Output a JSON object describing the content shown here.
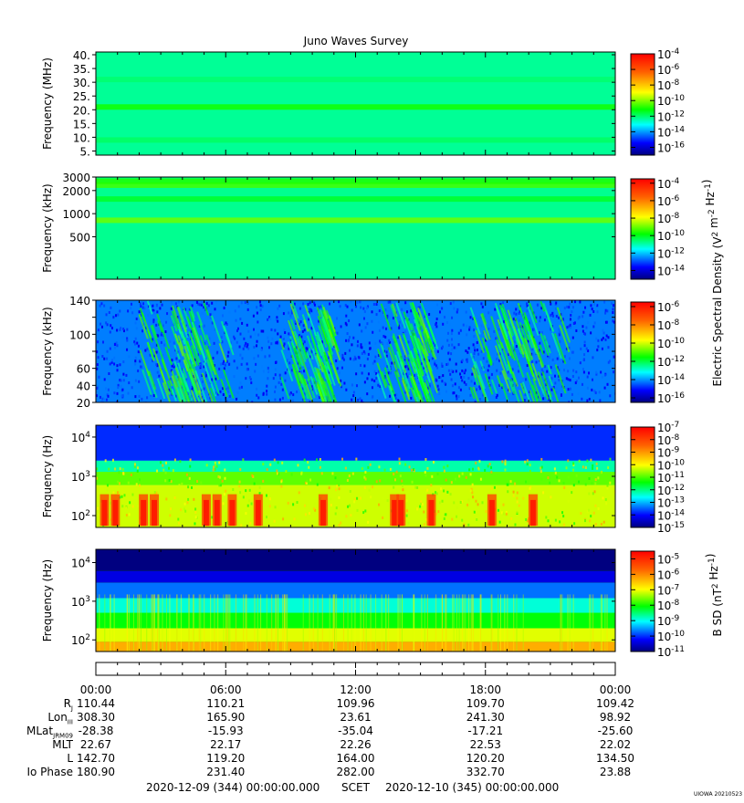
{
  "chart_data": {
    "type": "heatmap",
    "title": "Juno Waves Survey",
    "panels": [
      {
        "name": "hfr-high",
        "ylabel": "Frequency (MHz)",
        "yscale": "linear",
        "ylim": [
          3.5,
          41
        ],
        "yticks": [
          5,
          10,
          15,
          20,
          25,
          30,
          35,
          40
        ],
        "ytick_labels": [
          "5.",
          "10.",
          "15.",
          "20.",
          "25.",
          "30.",
          "35.",
          "40."
        ],
        "colorbar": {
          "log_min": -17,
          "log_max": -4,
          "tick_exps": [
            "-16",
            "-14",
            "-12",
            "-10",
            "-8",
            "-6",
            "-4"
          ]
        },
        "base_log": -12.3,
        "bands": [
          {
            "y": 21,
            "log": -11.0
          },
          {
            "y": 9,
            "log": -11.9
          },
          {
            "y": 31,
            "log": -12.0
          }
        ]
      },
      {
        "name": "hfr-low",
        "ylabel": "Frequency (kHz)",
        "yscale": "log",
        "ylim": [
          140,
          3000
        ],
        "yticks": [
          500,
          1000,
          2000,
          3000
        ],
        "ytick_labels": [
          "500",
          "1000",
          "2000",
          "3000"
        ],
        "colorbar": {
          "log_min": -15,
          "log_max": -3.5,
          "tick_exps": [
            "-14",
            "-12",
            "-10",
            "-8",
            "-6",
            "-4"
          ]
        },
        "base_log": -10.8,
        "bands": [
          {
            "y": 820,
            "log": -9.0
          },
          {
            "y": 2350,
            "log": -9.3
          },
          {
            "y": 1550,
            "log": -10.1
          },
          {
            "y": 2650,
            "log": -9.6
          }
        ]
      },
      {
        "name": "lfr-high",
        "ylabel": "Frequency (kHz)",
        "yscale": "linear",
        "ylim": [
          20,
          140
        ],
        "yticks": [
          20,
          40,
          60,
          80,
          100,
          120,
          140
        ],
        "ytick_labels": [
          "20",
          "40",
          "60",
          "",
          "100",
          "",
          "140"
        ],
        "colorbar": {
          "log_min": -16.5,
          "log_max": -5.5,
          "tick_exps": [
            "-16",
            "-14",
            "-12",
            "-10",
            "-8",
            "-6"
          ]
        },
        "base_log": -14.2,
        "bursts": [
          [
            2,
            6
          ],
          [
            3.5,
            4.5
          ],
          [
            8.5,
            10.5
          ],
          [
            10.2,
            10.8
          ],
          [
            13,
            15
          ],
          [
            14.5,
            15.3
          ],
          [
            17.3,
            20
          ],
          [
            18.5,
            21.5
          ]
        ]
      },
      {
        "name": "lfr-low",
        "ylabel": "Frequency (Hz)",
        "yscale": "log",
        "ylim": [
          50,
          20000
        ],
        "yticks": [
          100,
          1000,
          10000
        ],
        "ytick_labels": [
          "10^2",
          "10^3",
          "10^4"
        ],
        "colorbar": {
          "log_min": -15,
          "log_max": -7,
          "tick_exps": [
            "-7",
            "-8",
            "-9",
            "-10",
            "-11",
            "-12",
            "-13",
            "-14",
            "-15"
          ]
        },
        "base_log": -12.5,
        "hot_hours": [
          0.4,
          0.9,
          2.2,
          2.7,
          5.1,
          5.6,
          6.3,
          7.5,
          10.5,
          13.8,
          14.1,
          15.5,
          18.3,
          20.2
        ]
      },
      {
        "name": "magnetic",
        "ylabel": "Frequency (Hz)",
        "yscale": "log",
        "ylim": [
          50,
          22000
        ],
        "yticks": [
          100,
          1000,
          10000
        ],
        "ytick_labels": [
          "10^2",
          "10^3",
          "10^4"
        ],
        "colorbar": {
          "log_min": -11,
          "log_max": -4.5,
          "tick_exps": [
            "-5",
            "-6",
            "-7",
            "-8",
            "-9",
            "-10",
            "-11"
          ],
          "label": "B SD (nT^2 Hz^-1)"
        },
        "base_log": -8.0
      }
    ],
    "shared_colorbar_label": "Electric Spectral Density (V^2 m^-2 Hz^-1)",
    "x": {
      "label": "SCET",
      "range_hours": [
        0,
        24
      ],
      "tick_labels": [
        "00:00",
        "06:00",
        "12:00",
        "18:00",
        "00:00"
      ]
    },
    "ephemeris": {
      "rows": [
        {
          "label": "R",
          "sub": "J",
          "values": [
            "110.44",
            "110.21",
            "109.96",
            "109.70",
            "109.42"
          ]
        },
        {
          "label": "Lon",
          "sub": "III",
          "values": [
            "308.30",
            "165.90",
            "23.61",
            "241.30",
            "98.92"
          ]
        },
        {
          "label": "MLat",
          "sub": "JRM09",
          "values": [
            "-28.38",
            "-15.93",
            "-35.04",
            "-17.21",
            "-25.60"
          ]
        },
        {
          "label": "MLT",
          "sub": "",
          "values": [
            "22.67",
            "22.17",
            "22.26",
            "22.53",
            "22.02"
          ]
        },
        {
          "label": "L",
          "sub": "",
          "values": [
            "142.70",
            "119.20",
            "164.00",
            "120.20",
            "134.50"
          ]
        },
        {
          "label": "Io Phase",
          "sub": "",
          "values": [
            "180.90",
            "231.40",
            "282.00",
            "332.70",
            "23.88"
          ]
        }
      ]
    },
    "date_start": "2020-12-09 (344) 00:00:00.000",
    "scet_label": "SCET",
    "date_end": "2020-12-10 (345) 00:00:00.000",
    "credit": "UIOWA 20210523"
  }
}
